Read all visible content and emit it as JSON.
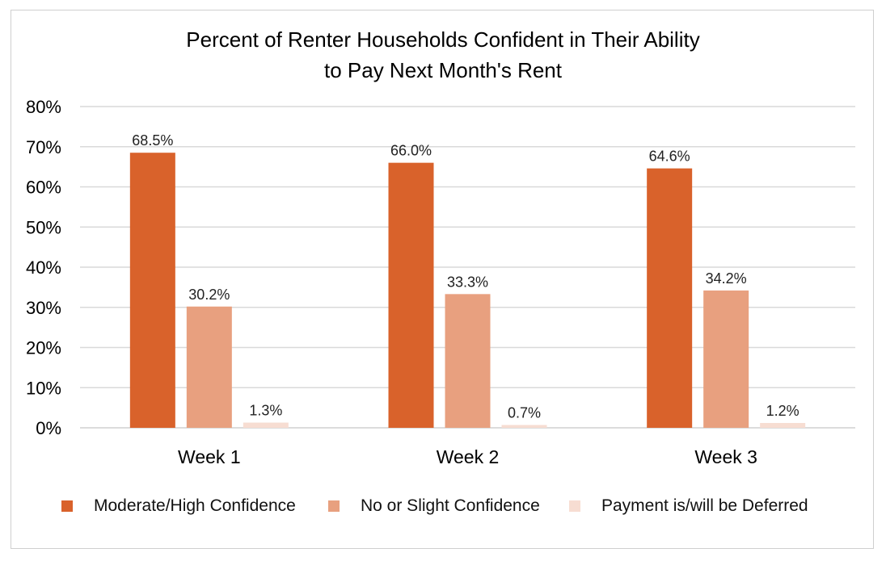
{
  "chart_data": {
    "type": "bar",
    "title": [
      "Percent of Renter Households Confident in Their Ability",
      "to Pay Next Month's Rent"
    ],
    "categories": [
      "Week 1",
      "Week 2",
      "Week 3"
    ],
    "series": [
      {
        "name": "Moderate/High Confidence",
        "values": [
          68.5,
          66.0,
          64.6
        ],
        "labels": [
          "68.5%",
          "66.0%",
          "64.6%"
        ],
        "color": "#d9622b"
      },
      {
        "name": "No or Slight Confidence",
        "values": [
          30.2,
          33.3,
          34.2
        ],
        "labels": [
          "30.2%",
          "33.3%",
          "34.2%"
        ],
        "color": "#e8a07f"
      },
      {
        "name": "Payment is/will be Deferred",
        "values": [
          1.3,
          0.7,
          1.2
        ],
        "labels": [
          "1.3%",
          "0.7%",
          "1.2%"
        ],
        "color": "#f7ddd2"
      }
    ],
    "ylim": [
      0,
      80
    ],
    "yticks": [
      "0%",
      "10%",
      "20%",
      "30%",
      "40%",
      "50%",
      "60%",
      "70%",
      "80%"
    ],
    "grid": true,
    "legend": "bottom"
  }
}
